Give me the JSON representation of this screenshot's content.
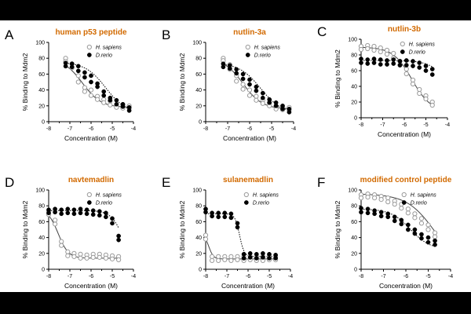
{
  "colors": {
    "title": "#d26a00",
    "human_marker": "#9a9a9a",
    "zebrafish_marker": "#000000",
    "background": "#ffffff",
    "frame": "#000000"
  },
  "legend_labels": {
    "human": "H. sapiens",
    "zebrafish": "D.rerio"
  },
  "chart_data": [
    {
      "type": "scatter",
      "letter": "A",
      "title": "human p53 peptide",
      "xlabel": "Concentration (M)",
      "ylabel": "% Binding to Mdm2",
      "xlim": [
        -8,
        -4
      ],
      "ylim": [
        0,
        100
      ],
      "xticks": [
        -8,
        -7,
        -6,
        -5,
        -4
      ],
      "yticks": [
        0,
        20,
        40,
        60,
        80,
        100
      ],
      "series": [
        {
          "name": "H. sapiens",
          "marker": "open",
          "x": [
            -7.2,
            -7.2,
            -6.9,
            -6.9,
            -6.6,
            -6.6,
            -6.3,
            -6.3,
            -6.0,
            -6.0,
            -5.7,
            -5.7,
            -5.4,
            -5.4,
            -5.1,
            -5.1,
            -4.8,
            -4.8,
            -4.5,
            -4.5,
            -4.2,
            -4.2
          ],
          "y": [
            80,
            76,
            73,
            68,
            58,
            50,
            43,
            38,
            40,
            33,
            32,
            28,
            28,
            24,
            26,
            21,
            20,
            18,
            21,
            17,
            20,
            17
          ],
          "fit": {
            "style": "solid",
            "top": 79,
            "bottom": 18,
            "logIC50": -6.4,
            "hill": 1.0
          }
        },
        {
          "name": "D.rerio",
          "marker": "filled",
          "x": [
            -7.2,
            -7.2,
            -6.9,
            -6.9,
            -6.6,
            -6.6,
            -6.3,
            -6.3,
            -6.0,
            -6.0,
            -5.7,
            -5.7,
            -5.4,
            -5.4,
            -5.1,
            -5.1,
            -4.8,
            -4.8,
            -4.5,
            -4.5,
            -4.2,
            -4.2
          ],
          "y": [
            74,
            70,
            73,
            69,
            70,
            64,
            62,
            56,
            58,
            50,
            48,
            44,
            38,
            33,
            30,
            27,
            27,
            22,
            22,
            19,
            18,
            14
          ],
          "fit": {
            "style": "dotted",
            "top": 75,
            "bottom": 10,
            "logIC50": -5.3,
            "hill": 0.9
          }
        }
      ]
    },
    {
      "type": "scatter",
      "letter": "B",
      "title": "nutlin-3a",
      "xlabel": "Concentration (M)",
      "ylabel": "% Binding to Mdm2",
      "xlim": [
        -8,
        -4
      ],
      "ylim": [
        0,
        100
      ],
      "xticks": [
        -8,
        -7,
        -6,
        -5,
        -4
      ],
      "yticks": [
        0,
        20,
        40,
        60,
        80,
        100
      ],
      "series": [
        {
          "name": "H. sapiens",
          "marker": "open",
          "x": [
            -7.2,
            -7.2,
            -6.9,
            -6.9,
            -6.6,
            -6.6,
            -6.3,
            -6.3,
            -6.0,
            -6.0,
            -5.7,
            -5.7,
            -5.4,
            -5.4,
            -5.1,
            -5.1,
            -4.8,
            -4.8,
            -4.5,
            -4.5,
            -4.2,
            -4.2
          ],
          "y": [
            80,
            77,
            72,
            66,
            58,
            51,
            47,
            41,
            40,
            33,
            32,
            27,
            27,
            23,
            24,
            20,
            20,
            16,
            19,
            15,
            18,
            15
          ],
          "fit": {
            "style": "solid",
            "top": 80,
            "bottom": 16,
            "logIC50": -6.3,
            "hill": 1.0
          }
        },
        {
          "name": "D.rerio",
          "marker": "filled",
          "x": [
            -7.2,
            -7.2,
            -6.9,
            -6.9,
            -6.6,
            -6.6,
            -6.3,
            -6.3,
            -6.0,
            -6.0,
            -5.7,
            -5.7,
            -5.4,
            -5.4,
            -5.1,
            -5.1,
            -4.8,
            -4.8,
            -4.5,
            -4.5,
            -4.2,
            -4.2
          ],
          "y": [
            73,
            69,
            71,
            67,
            66,
            61,
            60,
            54,
            53,
            47,
            44,
            39,
            36,
            30,
            28,
            24,
            24,
            20,
            20,
            16,
            16,
            12
          ],
          "fit": {
            "style": "dotted",
            "top": 74,
            "bottom": 10,
            "logIC50": -5.5,
            "hill": 0.9
          }
        }
      ]
    },
    {
      "type": "scatter",
      "letter": "C",
      "title": "nutlin-3b",
      "xlabel": "Concentration (M)",
      "ylabel": "% Binding to Mdm2",
      "xlim": [
        -8,
        -4
      ],
      "ylim": [
        0,
        100
      ],
      "xticks": [
        -8,
        -7,
        -6,
        -5,
        -4
      ],
      "yticks": [
        0,
        20,
        40,
        60,
        80,
        100
      ],
      "series": [
        {
          "name": "H. sapiens",
          "marker": "open",
          "x": [
            -8.0,
            -8.0,
            -7.7,
            -7.7,
            -7.4,
            -7.4,
            -7.1,
            -7.1,
            -6.8,
            -6.8,
            -6.5,
            -6.5,
            -6.2,
            -6.2,
            -5.9,
            -5.9,
            -5.6,
            -5.6,
            -5.3,
            -5.3,
            -5.0,
            -5.0,
            -4.7,
            -4.7
          ],
          "y": [
            91,
            87,
            92,
            88,
            91,
            86,
            89,
            84,
            86,
            81,
            82,
            76,
            72,
            67,
            62,
            56,
            48,
            43,
            36,
            31,
            28,
            24,
            20,
            16
          ],
          "fit": {
            "style": "solid",
            "top": 90,
            "bottom": 8,
            "logIC50": -5.65,
            "hill": 1.0
          }
        },
        {
          "name": "D.rerio",
          "marker": "filled",
          "x": [
            -8.0,
            -8.0,
            -7.7,
            -7.7,
            -7.4,
            -7.4,
            -7.1,
            -7.1,
            -6.8,
            -6.8,
            -6.5,
            -6.5,
            -6.2,
            -6.2,
            -5.9,
            -5.9,
            -5.6,
            -5.6,
            -5.3,
            -5.3,
            -5.0,
            -5.0,
            -4.7,
            -4.7
          ],
          "y": [
            75,
            70,
            74,
            69,
            75,
            70,
            74,
            68,
            73,
            68,
            74,
            69,
            72,
            67,
            73,
            67,
            72,
            66,
            70,
            64,
            66,
            60,
            62,
            55
          ],
          "fit": {
            "style": "dotted",
            "top": 73,
            "bottom": 0,
            "logIC50": -3.8,
            "hill": 1.0
          }
        }
      ]
    },
    {
      "type": "scatter",
      "letter": "D",
      "title": "navtemadlin",
      "xlabel": "Concentration (M)",
      "ylabel": "% Binding to Mdm2",
      "xlim": [
        -8,
        -4
      ],
      "ylim": [
        0,
        100
      ],
      "xticks": [
        -8,
        -7,
        -6,
        -5,
        -4
      ],
      "yticks": [
        0,
        20,
        40,
        60,
        80,
        100
      ],
      "series": [
        {
          "name": "H. sapiens",
          "marker": "open",
          "x": [
            -8.0,
            -8.0,
            -7.7,
            -7.7,
            -7.4,
            -7.4,
            -7.1,
            -7.1,
            -6.8,
            -6.8,
            -6.5,
            -6.5,
            -6.2,
            -6.2,
            -5.9,
            -5.9,
            -5.6,
            -5.6,
            -5.3,
            -5.3,
            -5.0,
            -5.0,
            -4.7,
            -4.7
          ],
          "y": [
            73,
            69,
            62,
            57,
            35,
            30,
            22,
            17,
            20,
            16,
            19,
            14,
            18,
            14,
            19,
            15,
            19,
            15,
            18,
            14,
            17,
            13,
            16,
            12
          ],
          "fit": {
            "style": "solid",
            "top": 76,
            "bottom": 14,
            "logIC50": -7.55,
            "hill": 1.8
          }
        },
        {
          "name": "D.rerio",
          "marker": "filled",
          "x": [
            -8.0,
            -8.0,
            -7.7,
            -7.7,
            -7.4,
            -7.4,
            -7.1,
            -7.1,
            -6.8,
            -6.8,
            -6.5,
            -6.5,
            -6.2,
            -6.2,
            -5.9,
            -5.9,
            -5.6,
            -5.6,
            -5.3,
            -5.3,
            -5.0,
            -5.0,
            -4.7,
            -4.7
          ],
          "y": [
            75,
            71,
            76,
            72,
            75,
            70,
            76,
            71,
            75,
            70,
            76,
            71,
            75,
            70,
            74,
            69,
            73,
            68,
            71,
            66,
            64,
            58,
            42,
            37
          ],
          "fit": {
            "style": "dotted",
            "top": 74,
            "bottom": 0,
            "logIC50": -4.45,
            "hill": 1.5
          }
        }
      ]
    },
    {
      "type": "scatter",
      "letter": "E",
      "title": "sulanemadlin",
      "xlabel": "Concentration (M)",
      "ylabel": "% Binding to Mdm2",
      "xlim": [
        -8,
        -4
      ],
      "ylim": [
        0,
        100
      ],
      "xticks": [
        -8,
        -7,
        -6,
        -5,
        -4
      ],
      "yticks": [
        0,
        20,
        40,
        60,
        80,
        100
      ],
      "series": [
        {
          "name": "H. sapiens",
          "marker": "open",
          "x": [
            -8.0,
            -8.0,
            -7.7,
            -7.7,
            -7.4,
            -7.4,
            -7.1,
            -7.1,
            -6.8,
            -6.8,
            -6.5,
            -6.5,
            -6.2,
            -6.2,
            -5.9,
            -5.9,
            -5.6,
            -5.6,
            -5.3,
            -5.3,
            -5.0,
            -5.0,
            -4.7,
            -4.7
          ],
          "y": [
            43,
            38,
            16,
            11,
            16,
            11,
            16,
            12,
            16,
            11,
            16,
            12,
            16,
            11,
            16,
            12,
            16,
            11,
            16,
            11,
            17,
            12,
            16,
            12
          ],
          "fit": {
            "style": "solid",
            "top": 44,
            "bottom": 13,
            "logIC50": -7.85,
            "hill": 4.0
          }
        },
        {
          "name": "D.rerio",
          "marker": "filled",
          "x": [
            -8.0,
            -8.0,
            -7.7,
            -7.7,
            -7.4,
            -7.4,
            -7.1,
            -7.1,
            -6.8,
            -6.8,
            -6.5,
            -6.5,
            -6.2,
            -6.2,
            -5.9,
            -5.9,
            -5.6,
            -5.6,
            -5.3,
            -5.3,
            -5.0,
            -5.0,
            -4.7,
            -4.7
          ],
          "y": [
            76,
            72,
            71,
            67,
            71,
            66,
            71,
            66,
            70,
            65,
            58,
            53,
            19,
            14,
            20,
            15,
            19,
            14,
            20,
            15,
            19,
            14,
            18,
            14
          ],
          "fit": {
            "style": "dotted",
            "top": 70,
            "bottom": 16,
            "logIC50": -6.4,
            "hill": 4.0
          }
        }
      ]
    },
    {
      "type": "scatter",
      "letter": "F",
      "title": "modified control peptide",
      "xlabel": "Concentration (M)",
      "ylabel": "% Binding to Mdm2",
      "xlim": [
        -8,
        -4
      ],
      "ylim": [
        0,
        100
      ],
      "xticks": [
        -8,
        -7,
        -6,
        -5,
        -4
      ],
      "yticks": [
        0,
        20,
        40,
        60,
        80,
        100
      ],
      "series": [
        {
          "name": "H. sapiens",
          "marker": "open",
          "x": [
            -8.0,
            -8.0,
            -7.7,
            -7.7,
            -7.4,
            -7.4,
            -7.1,
            -7.1,
            -6.8,
            -6.8,
            -6.5,
            -6.5,
            -6.2,
            -6.2,
            -5.9,
            -5.9,
            -5.6,
            -5.6,
            -5.3,
            -5.3,
            -5.0,
            -5.0,
            -4.7,
            -4.7
          ],
          "y": [
            94,
            90,
            95,
            91,
            94,
            90,
            92,
            88,
            90,
            85,
            86,
            82,
            82,
            77,
            76,
            71,
            70,
            65,
            64,
            58,
            56,
            50,
            46,
            41
          ],
          "fit": {
            "style": "solid",
            "top": 95,
            "bottom": 0,
            "logIC50": -4.7,
            "hill": 0.7
          }
        },
        {
          "name": "D.rerio",
          "marker": "filled",
          "x": [
            -8.0,
            -8.0,
            -7.7,
            -7.7,
            -7.4,
            -7.4,
            -7.1,
            -7.1,
            -6.8,
            -6.8,
            -6.5,
            -6.5,
            -6.2,
            -6.2,
            -5.9,
            -5.9,
            -5.6,
            -5.6,
            -5.3,
            -5.3,
            -5.0,
            -5.0,
            -4.7,
            -4.7
          ],
          "y": [
            77,
            72,
            76,
            71,
            74,
            70,
            72,
            67,
            70,
            66,
            66,
            61,
            62,
            57,
            56,
            50,
            50,
            45,
            44,
            39,
            40,
            34,
            36,
            31
          ],
          "fit": {
            "style": "dotted",
            "top": 76,
            "bottom": 25,
            "logIC50": -5.8,
            "hill": 1.0
          }
        }
      ]
    }
  ]
}
